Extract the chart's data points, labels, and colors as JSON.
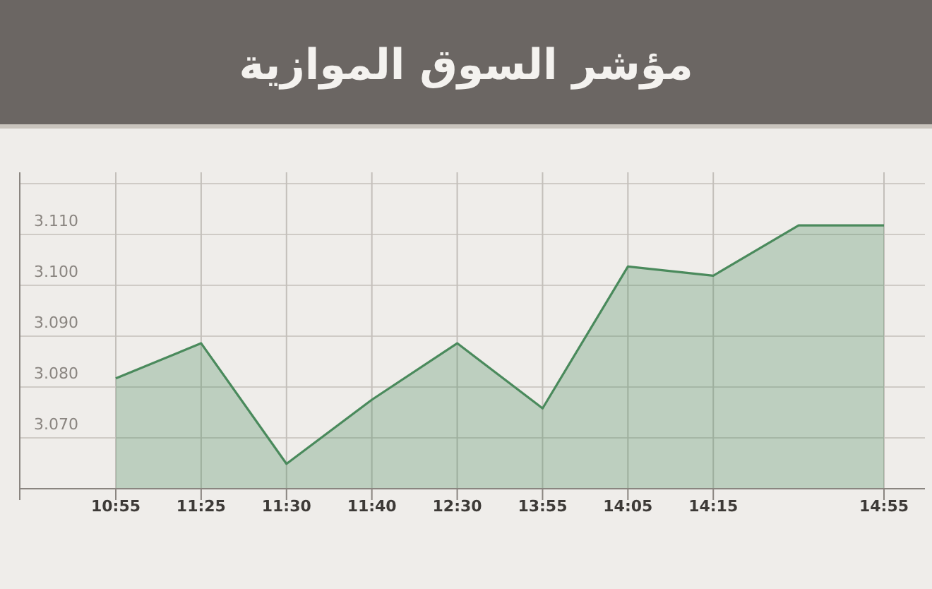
{
  "chart_data": {
    "type": "area",
    "title": "مؤشر السوق الموازية",
    "categories": [
      "10:55",
      "11:25",
      "11:30",
      "11:40",
      "12:30",
      "13:55",
      "14:05",
      "14:15",
      null,
      "14:55"
    ],
    "series": [
      {
        "color": "#4a8a5c",
        "values": [
          3.0817,
          3.0886,
          3.0649,
          3.0775,
          3.0886,
          3.0758,
          3.1037,
          3.1019,
          3.1118,
          3.1118
        ]
      }
    ],
    "ylim": [
      3.06,
      3.12
    ],
    "yticks": [
      {
        "value": 3.07,
        "label": "3.070"
      },
      {
        "value": 3.08,
        "label": "3.080"
      },
      {
        "value": 3.09,
        "label": "3.090"
      },
      {
        "value": 3.1,
        "label": "3.100"
      },
      {
        "value": 3.11,
        "label": "3.110"
      }
    ],
    "grid": true
  }
}
